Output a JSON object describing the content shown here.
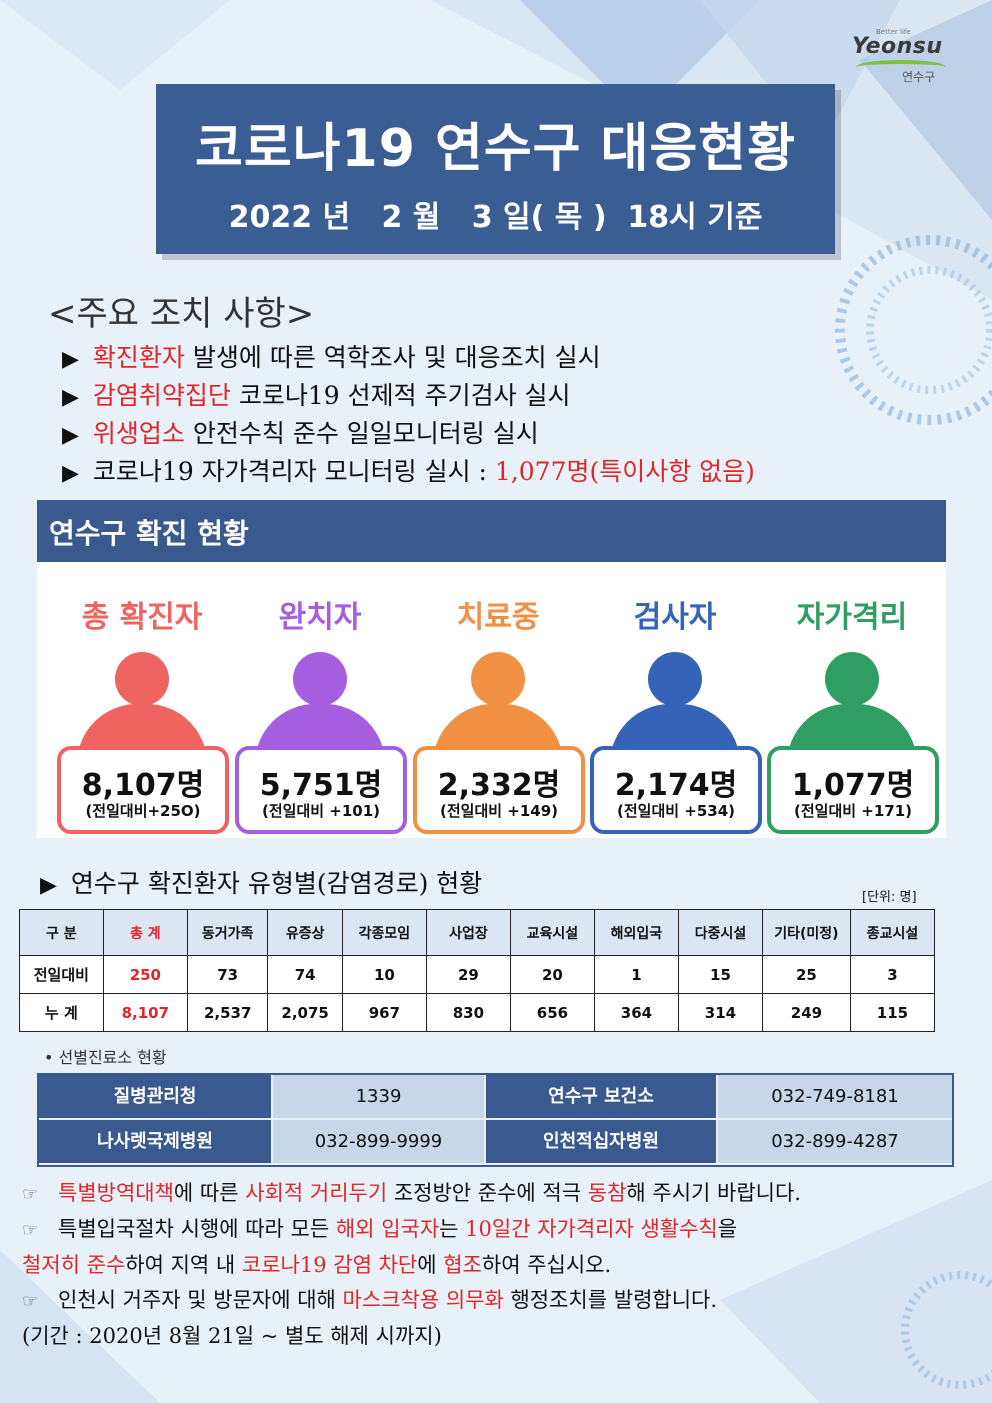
{
  "logo": {
    "tagline": "Better life",
    "wordmark": "Yeonsu",
    "sub": "연수구"
  },
  "title": {
    "main": "코로나19 연수구 대응현황",
    "date": "2022 년   2 월   3 일( 목 )  18시 기준"
  },
  "measures": {
    "heading": "<주요 조치 사항>",
    "items": [
      {
        "highlight": "확진환자",
        "text": " 발생에 따른 역학조사 및 대응조치 실시",
        "tail": ""
      },
      {
        "highlight": "감염취약집단",
        "text": " 코로나19 선제적 주기검사 실시",
        "tail": ""
      },
      {
        "highlight": "위생업소",
        "text": " 안전수칙 준수 일일모니터링 실시",
        "tail": ""
      },
      {
        "highlight": "",
        "text": "코로나19 자가격리자 모니터링 실시 : ",
        "tail": "1,077명(특이사항 없음)"
      }
    ]
  },
  "status": {
    "heading": "연수구 확진 현황",
    "stats": [
      {
        "label": "총 확진자",
        "value": "8,107명",
        "delta": "(전일대비+25O)",
        "color": "#ef6461"
      },
      {
        "label": "완치자",
        "value": "5,751명",
        "delta": "(전일대비 +101)",
        "color": "#a55ee0"
      },
      {
        "label": "치료중",
        "value": "2,332명",
        "delta": "(전일대비 +149)",
        "color": "#f18f43"
      },
      {
        "label": "검사자",
        "value": "2,174명",
        "delta": "(전일대비 +534)",
        "color": "#3563b8"
      },
      {
        "label": "자가격리",
        "value": "1,077명",
        "delta": "(전일대비 +171)",
        "color": "#2e9e63"
      }
    ]
  },
  "types_table": {
    "title": "연수구 확진환자 유형별(감염경로) 현황",
    "unit": "[단위: 명]",
    "headers": [
      "구 분",
      "총 계",
      "동거가족",
      "유증상",
      "각종모임",
      "사업장",
      "교육시설",
      "해외입국",
      "다중시설",
      "기타(미정)",
      "종교시설"
    ],
    "rows": [
      {
        "label": "전일대비",
        "values": [
          "250",
          "73",
          "74",
          "10",
          "29",
          "20",
          "1",
          "15",
          "25",
          "3"
        ]
      },
      {
        "label": "누   계",
        "values": [
          "8,107",
          "2,537",
          "2,075",
          "967",
          "830",
          "656",
          "364",
          "314",
          "249",
          "115"
        ]
      }
    ]
  },
  "clinics": {
    "heading": "• 선별진료소 현황",
    "rows": [
      {
        "name1": "질병관리청",
        "phone1": "1339",
        "name2": "연수구 보건소",
        "phone2": "032-749-8181"
      },
      {
        "name1": "나사렛국제병원",
        "phone1": "032-899-9999",
        "name2": "인천적십자병원",
        "phone2": "032-899-4287"
      }
    ]
  },
  "notices": {
    "n1": {
      "a": "특별방역대책",
      "b": "에 따른 ",
      "c": "사회적 거리두기",
      "d": " 조정방안 준수에 적극 ",
      "e": "동참",
      "f": "해 주시기 바랍니다."
    },
    "n2": {
      "a": "특별입국절차 시행에 따라 모든 ",
      "b": "해외 입국자",
      "c": "는 ",
      "d": "10일간 자가격리자 생활수칙",
      "e": "을"
    },
    "n3": {
      "a": "철저히 준수",
      "b": "하여 지역 내 ",
      "c": "코로나19 감염 차단",
      "d": "에 ",
      "e": "협조",
      "f": "하여 주십시오."
    },
    "n4": {
      "a": "인천시 거주자 및 방문자에 대해 ",
      "b": "마스크착용 의무화",
      "c": " 행정조치를 발령합니다."
    },
    "n5": "(기간 : 2020년 8월 21일 ~ 별도 해제 시까지)"
  }
}
